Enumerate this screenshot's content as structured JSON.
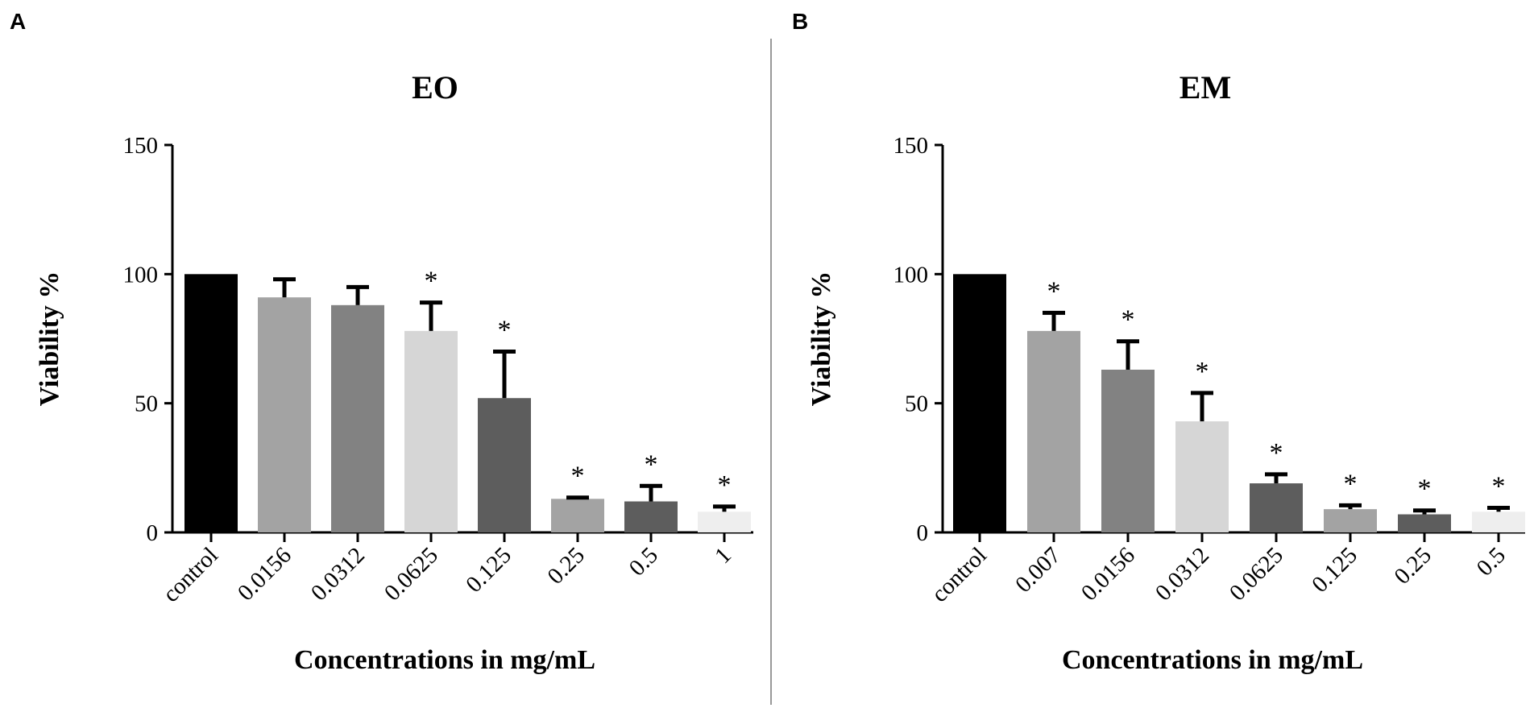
{
  "panels": [
    {
      "letter": "A"
    },
    {
      "letter": "B"
    }
  ],
  "chart_data": [
    {
      "type": "bar",
      "title": "EO",
      "xlabel": "Concentrations in mg/mL",
      "ylabel": "Viability %",
      "ylim": [
        0,
        150
      ],
      "yticks": [
        "0",
        "50",
        "100",
        "150"
      ],
      "categories": [
        "control",
        "0.0156",
        "0.0312",
        "0.0625",
        "0.125",
        "0.25",
        "0.5",
        "1"
      ],
      "values": [
        100,
        91,
        88,
        78,
        52,
        13,
        12,
        8
      ],
      "errors": [
        0,
        7,
        7,
        11,
        18,
        0.5,
        6,
        2
      ],
      "significant": [
        false,
        false,
        false,
        true,
        true,
        true,
        true,
        true
      ],
      "marker": "*",
      "colors": [
        "#000000",
        "#a3a3a3",
        "#828282",
        "#d6d6d6",
        "#5d5d5d",
        "#a3a3a3",
        "#5d5d5d",
        "#eeeeee"
      ]
    },
    {
      "type": "bar",
      "title": "EM",
      "xlabel": "Concentrations in mg/mL",
      "ylabel": "Viability %",
      "ylim": [
        0,
        150
      ],
      "yticks": [
        "0",
        "50",
        "100",
        "150"
      ],
      "categories": [
        "control",
        "0.007",
        "0.0156",
        "0.0312",
        "0.0625",
        "0.125",
        "0.25",
        "0.5"
      ],
      "values": [
        100,
        78,
        63,
        43,
        19,
        9,
        7,
        8
      ],
      "errors": [
        0,
        7,
        11,
        11,
        3.5,
        1.5,
        1.5,
        1.5
      ],
      "significant": [
        false,
        true,
        true,
        true,
        true,
        true,
        true,
        true
      ],
      "marker": "*",
      "colors": [
        "#000000",
        "#a3a3a3",
        "#828282",
        "#d6d6d6",
        "#5d5d5d",
        "#a3a3a3",
        "#5d5d5d",
        "#eeeeee"
      ]
    }
  ]
}
